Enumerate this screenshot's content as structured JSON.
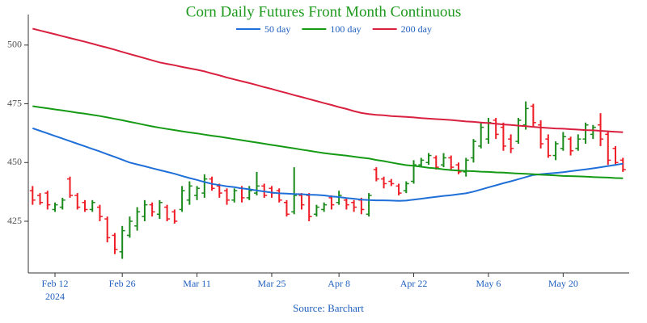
{
  "chart_data": {
    "type": "ohlc",
    "title": "Corn Daily Futures Front Month Continuous",
    "source": "Source: Barchart",
    "year": "2024",
    "categories": [
      null,
      null,
      null,
      "Feb 12",
      null,
      null,
      null,
      null,
      null,
      null,
      null,
      null,
      "Feb 26",
      null,
      null,
      null,
      null,
      null,
      null,
      null,
      null,
      null,
      "Mar 11",
      null,
      null,
      null,
      null,
      null,
      null,
      null,
      null,
      null,
      "Mar 25",
      null,
      null,
      null,
      null,
      null,
      null,
      null,
      null,
      "Apr 8",
      null,
      null,
      null,
      null,
      null,
      null,
      null,
      null,
      null,
      "Apr 22",
      null,
      null,
      null,
      null,
      null,
      null,
      null,
      null,
      null,
      "May 6",
      null,
      null,
      null,
      null,
      null,
      null,
      null,
      null,
      null,
      "May 20",
      null,
      null,
      null,
      null,
      null,
      null,
      null,
      null
    ],
    "ohlc": {
      "open": [
        438,
        436,
        437,
        430,
        431,
        443,
        436,
        433,
        430,
        431,
        426,
        419,
        412,
        419,
        423,
        427,
        432,
        428,
        431,
        429,
        430,
        434,
        436,
        437,
        443,
        440,
        438,
        434,
        439,
        435,
        437,
        440,
        439,
        438,
        433,
        429,
        436,
        436,
        428,
        430,
        435,
        433,
        434,
        433,
        434,
        428,
        447,
        443,
        442,
        440,
        438,
        442,
        449,
        450,
        452,
        449,
        452,
        449,
        446,
        452,
        457,
        460,
        468,
        465,
        460,
        459,
        466,
        474,
        466,
        460,
        453,
        456,
        460,
        456,
        460,
        462,
        466,
        462,
        456,
        451
      ],
      "high": [
        440,
        437,
        438,
        433,
        435,
        444,
        437,
        434,
        434,
        432,
        427,
        420,
        423,
        427,
        431,
        434,
        433,
        434,
        432,
        430,
        440,
        442,
        440,
        445,
        444,
        441,
        439,
        439,
        440,
        440,
        446,
        441,
        440,
        439,
        434,
        448,
        437,
        437,
        432,
        433,
        436,
        438,
        435,
        434,
        435,
        437,
        448,
        444,
        443,
        441,
        442,
        451,
        452,
        454,
        453,
        454,
        453,
        450,
        452,
        460,
        467,
        469,
        469,
        467,
        462,
        469,
        476,
        475,
        468,
        462,
        459,
        463,
        461,
        462,
        467,
        466,
        471,
        463,
        457,
        452
      ],
      "low": [
        432,
        432,
        430,
        429,
        430,
        435,
        430,
        429,
        429,
        425,
        416,
        411,
        409,
        418,
        421,
        425,
        427,
        426,
        425,
        424,
        429,
        432,
        434,
        435,
        438,
        435,
        432,
        433,
        433,
        434,
        436,
        435,
        435,
        433,
        427,
        428,
        430,
        425,
        427,
        429,
        430,
        432,
        430,
        429,
        428,
        427,
        442,
        439,
        440,
        436,
        437,
        441,
        448,
        449,
        447,
        448,
        447,
        445,
        444,
        450,
        456,
        458,
        460,
        455,
        454,
        458,
        464,
        465,
        456,
        452,
        451,
        455,
        453,
        455,
        458,
        460,
        457,
        449,
        449,
        446
      ],
      "close": [
        434,
        433,
        432,
        432,
        434,
        436,
        431,
        430,
        433,
        427,
        418,
        413,
        421,
        425,
        429,
        432,
        429,
        433,
        426,
        425,
        438,
        440,
        439,
        443,
        439,
        437,
        434,
        438,
        435,
        438,
        440,
        436,
        437,
        434,
        428,
        436,
        432,
        427,
        431,
        432,
        432,
        436,
        432,
        431,
        430,
        436,
        443,
        441,
        441,
        437,
        441,
        449,
        451,
        453,
        448,
        452,
        448,
        446,
        451,
        459,
        465,
        467,
        462,
        457,
        456,
        468,
        473,
        467,
        458,
        453,
        458,
        461,
        455,
        460,
        466,
        465,
        460,
        451,
        450,
        447
      ]
    },
    "up_color": "#1a8a1a",
    "down_color": "#ee1c25",
    "series": [
      {
        "name": "50 day",
        "color": "#1f6fd8",
        "values": [
          464.6,
          463.5,
          462.4,
          461.3,
          460.2,
          459.1,
          458.0,
          456.9,
          455.8,
          454.7,
          453.5,
          452.4,
          451.2,
          450.0,
          449.2,
          448.4,
          447.6,
          446.8,
          446.0,
          445.2,
          444.3,
          443.4,
          442.6,
          441.7,
          440.9,
          440.4,
          439.9,
          439.5,
          439.0,
          438.6,
          438.1,
          437.7,
          437.2,
          436.9,
          436.8,
          436.6,
          436.5,
          436.3,
          436.2,
          436.0,
          435.6,
          435.3,
          434.9,
          434.6,
          434.2,
          434.0,
          433.9,
          433.9,
          433.8,
          433.7,
          433.8,
          434.2,
          434.6,
          435.0,
          435.4,
          435.8,
          436.1,
          436.5,
          436.9,
          437.6,
          438.5,
          439.4,
          440.3,
          441.2,
          442.0,
          442.9,
          443.8,
          444.7,
          445.0,
          445.3,
          445.6,
          445.9,
          446.3,
          446.7,
          447.1,
          447.5,
          448.0,
          448.5,
          449.0,
          449.5
        ]
      },
      {
        "name": "100 day",
        "color": "#159a15",
        "values": [
          474.0,
          473.5,
          473.1,
          472.6,
          472.2,
          471.7,
          471.2,
          470.8,
          470.3,
          469.8,
          469.2,
          468.6,
          468.0,
          467.3,
          466.7,
          466.0,
          465.4,
          464.8,
          464.3,
          463.8,
          463.3,
          462.8,
          462.4,
          461.9,
          461.4,
          461.0,
          460.5,
          460.0,
          459.5,
          459.0,
          458.5,
          458.0,
          457.5,
          457.0,
          456.5,
          456.0,
          455.5,
          455.0,
          454.5,
          454.0,
          453.6,
          453.3,
          452.9,
          452.5,
          452.1,
          451.7,
          451.1,
          450.6,
          450.0,
          449.4,
          448.9,
          448.6,
          448.2,
          447.8,
          447.5,
          447.1,
          446.8,
          446.6,
          446.4,
          446.3,
          446.1,
          446.0,
          445.8,
          445.7,
          445.5,
          445.3,
          445.2,
          445.0,
          444.8,
          444.7,
          444.5,
          444.3,
          444.2,
          444.1,
          444.0,
          443.8,
          443.7,
          443.6,
          443.4,
          443.3
        ]
      },
      {
        "name": "200 day",
        "color": "#d9213f",
        "values": [
          507.0,
          506.2,
          505.4,
          504.6,
          503.8,
          503.0,
          502.2,
          501.4,
          500.6,
          499.7,
          498.9,
          498.0,
          497.1,
          496.2,
          495.3,
          494.4,
          493.5,
          492.6,
          492.0,
          491.4,
          490.7,
          490.1,
          489.5,
          488.8,
          487.9,
          487.1,
          486.2,
          485.4,
          484.6,
          483.8,
          483.0,
          482.1,
          481.3,
          480.4,
          479.6,
          478.7,
          477.9,
          477.0,
          476.2,
          475.3,
          474.5,
          473.6,
          472.8,
          471.9,
          471.1,
          470.6,
          470.3,
          470.1,
          469.8,
          469.6,
          469.4,
          469.2,
          468.9,
          468.7,
          468.5,
          468.3,
          468.1,
          467.8,
          467.5,
          467.3,
          467.0,
          466.8,
          466.5,
          466.2,
          466.0,
          465.7,
          465.5,
          465.2,
          464.9,
          464.7,
          464.5,
          464.4,
          464.2,
          464.0,
          463.8,
          463.7,
          463.5,
          463.3,
          463.1,
          462.9
        ]
      }
    ],
    "ylim": [
      403,
      513
    ],
    "yticks": [
      425,
      450,
      475,
      500
    ],
    "legend": "top"
  }
}
